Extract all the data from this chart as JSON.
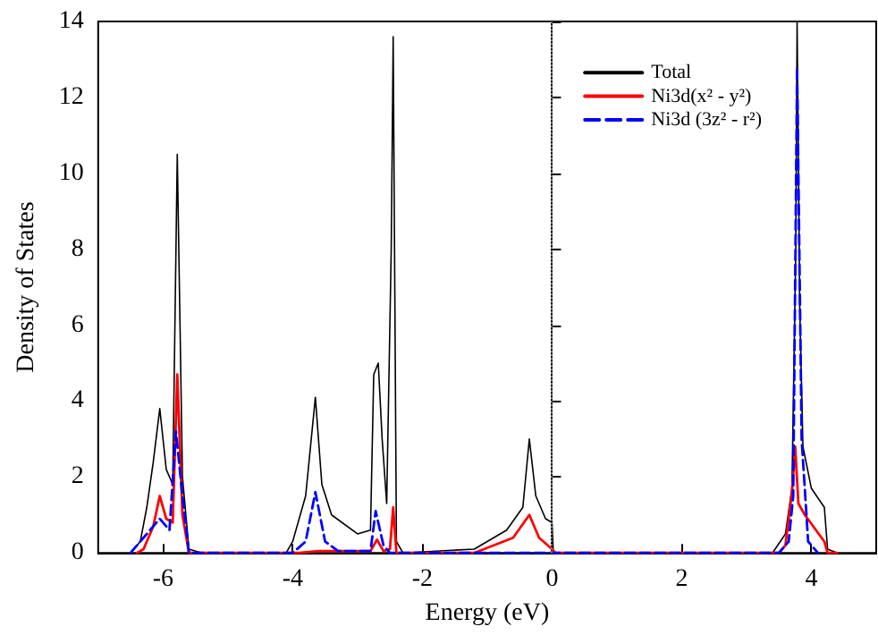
{
  "chart_data": {
    "type": "line",
    "xlabel": "Energy (eV)",
    "ylabel": "Density of States",
    "xlim": [
      -7,
      5
    ],
    "xticks": [
      -6,
      -4,
      -2,
      0,
      2,
      4
    ],
    "ylim": [
      0,
      14
    ],
    "yticks": [
      0,
      2,
      4,
      6,
      8,
      10,
      12,
      14
    ],
    "grid": false,
    "legend": "top right",
    "marker": "none",
    "ref_lines": [
      {
        "axis": "x",
        "value": 0,
        "color": "#888888",
        "line_style": "dotted"
      }
    ],
    "series": [
      {
        "name": "Total",
        "color": "#000000",
        "line_style": "solid",
        "x": [
          -6.5,
          -6.35,
          -6.25,
          -6.15,
          -6.05,
          -5.95,
          -5.85,
          -5.78,
          -5.7,
          -5.6,
          -5.4,
          -4.1,
          -4.0,
          -3.8,
          -3.65,
          -3.55,
          -3.4,
          -3.0,
          -2.8,
          -2.75,
          -2.68,
          -2.62,
          -2.55,
          -2.48,
          -2.45,
          -2.4,
          -2.3,
          -1.2,
          -0.7,
          -0.45,
          -0.35,
          -0.25,
          -0.1,
          0,
          0.02,
          3.4,
          3.6,
          3.7,
          3.76,
          3.78,
          3.82,
          3.87,
          4.0,
          4.2,
          4.25,
          4.4
        ],
        "values": [
          0,
          0.3,
          1.2,
          2.4,
          3.8,
          2.2,
          1.8,
          10.5,
          2.0,
          0.1,
          0,
          0,
          0.3,
          1.5,
          4.1,
          1.8,
          1.0,
          0.5,
          0.6,
          4.7,
          5.0,
          3.0,
          1.3,
          8.0,
          13.6,
          0.3,
          0,
          0.1,
          0.6,
          1.2,
          3.0,
          1.5,
          0.9,
          0.8,
          0,
          0,
          0.5,
          1.7,
          8.0,
          14,
          6.5,
          2.8,
          1.7,
          1.2,
          0.1,
          0
        ]
      },
      {
        "name": "Ni3d(x² - y²)",
        "color": "#ff0000",
        "line_style": "solid",
        "x": [
          -6.4,
          -6.3,
          -6.15,
          -6.05,
          -5.95,
          -5.85,
          -5.78,
          -5.7,
          -5.6,
          -3.9,
          -3.6,
          -2.8,
          -2.7,
          -2.6,
          -2.5,
          -2.45,
          -2.4,
          -1.2,
          -0.6,
          -0.35,
          -0.2,
          0,
          0.05,
          3.5,
          3.6,
          3.7,
          3.75,
          3.8,
          3.9,
          4.2,
          4.25,
          4.4
        ],
        "values": [
          0,
          0.1,
          0.7,
          1.5,
          0.9,
          0.8,
          4.7,
          1.0,
          0,
          0,
          0.05,
          0.05,
          0.35,
          0.05,
          0.1,
          1.2,
          0,
          0,
          0.4,
          1.0,
          0.4,
          0.1,
          0,
          0,
          0.2,
          1.6,
          2.8,
          1.3,
          1.0,
          0.3,
          0,
          0
        ]
      },
      {
        "name": "Ni3d (3z² - r²)",
        "color": "#0000ff",
        "line_style": "dashed",
        "x": [
          -6.5,
          -6.3,
          -6.05,
          -5.9,
          -5.8,
          -5.7,
          -5.6,
          -4.0,
          -3.8,
          -3.65,
          -3.5,
          -3.3,
          -2.8,
          -2.72,
          -2.6,
          -2.5,
          -0.5,
          3.5,
          3.65,
          3.72,
          3.78,
          3.85,
          3.95,
          4.1
        ],
        "values": [
          0,
          0.4,
          0.9,
          0.6,
          3.2,
          1.5,
          0,
          0,
          0.3,
          1.6,
          0.3,
          0.05,
          0.05,
          1.1,
          0.2,
          0,
          0,
          0,
          0.3,
          1.5,
          12.8,
          3.0,
          0.3,
          0
        ]
      }
    ]
  }
}
